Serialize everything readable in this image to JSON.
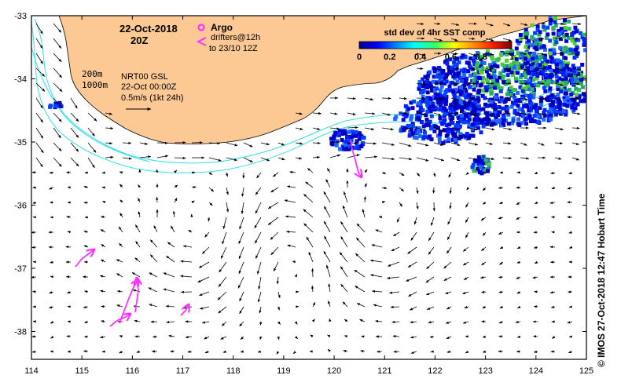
{
  "map": {
    "date_label": "22-Oct-2018",
    "time_label": "20Z",
    "argo_label": "Argo",
    "drifters_label": "drifters@12h",
    "drifters_window": "to 23/10 12Z",
    "depth_200": "200m",
    "depth_1000": "1000m",
    "product": "NRT00 GSL",
    "product_time": "22-Oct 00:00Z",
    "scale_label": "0.5m/s (1kt 24h)",
    "colorbar_title": "std dev of 4hr SST comp",
    "colorbar_ticks": [
      "0",
      "0.2",
      "0.4",
      "0.6",
      "0.8",
      "1"
    ],
    "x_ticks": [
      "114",
      "115",
      "116",
      "117",
      "118",
      "119",
      "120",
      "121",
      "122",
      "123",
      "124",
      "125"
    ],
    "y_ticks": [
      "-33",
      "-34",
      "-35",
      "-36",
      "-37",
      "-38"
    ],
    "credit": "© IMOS 27-Oct-2018 12:47 Hobart Time",
    "colors": {
      "land": "#fcc994",
      "isobath": "#33e0e8",
      "drifter": "#ff33ff",
      "sst_high": "#0000cc",
      "sst_mid": "#33bb33"
    }
  }
}
